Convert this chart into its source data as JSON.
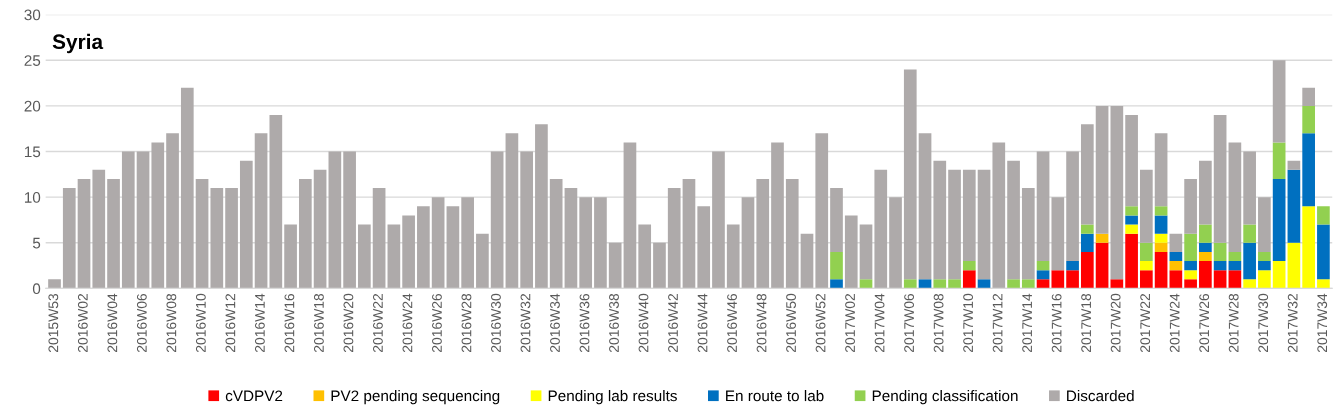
{
  "chart_data": {
    "type": "bar",
    "title": "Syria",
    "stacked": true,
    "categories": [
      "2015W53",
      null,
      "2016W02",
      null,
      "2016W04",
      null,
      "2016W06",
      null,
      "2016W08",
      null,
      "2016W10",
      null,
      "2016W12",
      null,
      "2016W14",
      null,
      "2016W16",
      null,
      "2016W18",
      null,
      "2016W20",
      null,
      "2016W22",
      null,
      "2016W24",
      null,
      "2016W26",
      null,
      "2016W28",
      null,
      "2016W30",
      null,
      "2016W32",
      null,
      "2016W34",
      null,
      "2016W36",
      null,
      "2016W38",
      null,
      "2016W40",
      null,
      "2016W42",
      null,
      "2016W44",
      null,
      "2016W46",
      null,
      "2016W48",
      null,
      "2016W50",
      null,
      "2016W52",
      null,
      "2017W02",
      null,
      "2017W04",
      null,
      "2017W06",
      null,
      "2017W08",
      null,
      "2017W10",
      null,
      "2017W12",
      null,
      "2017W14",
      null,
      "2017W16",
      null,
      "2017W18",
      null,
      "2017W20",
      null,
      "2017W22",
      null,
      "2017W24",
      null,
      "2017W26",
      null,
      "2017W28",
      null,
      "2017W30",
      null,
      "2017W32",
      null,
      "2017W34"
    ],
    "series": [
      {
        "name": "cVDPV2",
        "color": "#ff0000",
        "values": [
          0,
          0,
          0,
          0,
          0,
          0,
          0,
          0,
          0,
          0,
          0,
          0,
          0,
          0,
          0,
          0,
          0,
          0,
          0,
          0,
          0,
          0,
          0,
          0,
          0,
          0,
          0,
          0,
          0,
          0,
          0,
          0,
          0,
          0,
          0,
          0,
          0,
          0,
          0,
          0,
          0,
          0,
          0,
          0,
          0,
          0,
          0,
          0,
          0,
          0,
          0,
          0,
          0,
          0,
          0,
          0,
          0,
          0,
          0,
          0,
          0,
          0,
          2,
          0,
          0,
          0,
          0,
          1,
          2,
          2,
          4,
          5,
          1,
          6,
          2,
          4,
          2,
          1,
          3,
          2,
          2,
          0,
          0,
          0,
          0,
          0,
          0
        ]
      },
      {
        "name": "PV2 pending sequencing",
        "color": "#ffc000",
        "values": [
          0,
          0,
          0,
          0,
          0,
          0,
          0,
          0,
          0,
          0,
          0,
          0,
          0,
          0,
          0,
          0,
          0,
          0,
          0,
          0,
          0,
          0,
          0,
          0,
          0,
          0,
          0,
          0,
          0,
          0,
          0,
          0,
          0,
          0,
          0,
          0,
          0,
          0,
          0,
          0,
          0,
          0,
          0,
          0,
          0,
          0,
          0,
          0,
          0,
          0,
          0,
          0,
          0,
          0,
          0,
          0,
          0,
          0,
          0,
          0,
          0,
          0,
          0,
          0,
          0,
          0,
          0,
          0,
          0,
          0,
          0,
          1,
          0,
          0,
          0,
          1,
          1,
          0,
          1,
          0,
          0,
          0,
          0,
          0,
          0,
          0,
          0
        ]
      },
      {
        "name": "Pending lab results",
        "color": "#ffff00",
        "values": [
          0,
          0,
          0,
          0,
          0,
          0,
          0,
          0,
          0,
          0,
          0,
          0,
          0,
          0,
          0,
          0,
          0,
          0,
          0,
          0,
          0,
          0,
          0,
          0,
          0,
          0,
          0,
          0,
          0,
          0,
          0,
          0,
          0,
          0,
          0,
          0,
          0,
          0,
          0,
          0,
          0,
          0,
          0,
          0,
          0,
          0,
          0,
          0,
          0,
          0,
          0,
          0,
          0,
          0,
          0,
          0,
          0,
          0,
          0,
          0,
          0,
          0,
          0,
          0,
          0,
          0,
          0,
          0,
          0,
          0,
          0,
          0,
          0,
          1,
          1,
          1,
          0,
          1,
          0,
          0,
          0,
          1,
          2,
          3,
          5,
          9,
          1
        ]
      },
      {
        "name": "En route to lab",
        "color": "#0070c0",
        "values": [
          0,
          0,
          0,
          0,
          0,
          0,
          0,
          0,
          0,
          0,
          0,
          0,
          0,
          0,
          0,
          0,
          0,
          0,
          0,
          0,
          0,
          0,
          0,
          0,
          0,
          0,
          0,
          0,
          0,
          0,
          0,
          0,
          0,
          0,
          0,
          0,
          0,
          0,
          0,
          0,
          0,
          0,
          0,
          0,
          0,
          0,
          0,
          0,
          0,
          0,
          0,
          0,
          0,
          1,
          0,
          0,
          0,
          0,
          0,
          1,
          0,
          0,
          0,
          1,
          0,
          0,
          0,
          1,
          0,
          1,
          2,
          0,
          0,
          1,
          0,
          2,
          1,
          1,
          1,
          1,
          1,
          4,
          1,
          9,
          8,
          8,
          6
        ]
      },
      {
        "name": "Pending classification",
        "color": "#92d050",
        "values": [
          0,
          0,
          0,
          0,
          0,
          0,
          0,
          0,
          0,
          0,
          0,
          0,
          0,
          0,
          0,
          0,
          0,
          0,
          0,
          0,
          0,
          0,
          0,
          0,
          0,
          0,
          0,
          0,
          0,
          0,
          0,
          0,
          0,
          0,
          0,
          0,
          0,
          0,
          0,
          0,
          0,
          0,
          0,
          0,
          0,
          0,
          0,
          0,
          0,
          0,
          0,
          0,
          0,
          3,
          0,
          1,
          0,
          0,
          1,
          0,
          1,
          1,
          1,
          0,
          0,
          1,
          1,
          1,
          0,
          0,
          1,
          0,
          0,
          1,
          2,
          1,
          0,
          3,
          2,
          2,
          1,
          2,
          1,
          4,
          0,
          3,
          2
        ]
      },
      {
        "name": "Discarded",
        "color": "#aeaaaa",
        "values": [
          1,
          11,
          12,
          13,
          12,
          15,
          15,
          16,
          17,
          22,
          12,
          11,
          11,
          14,
          17,
          19,
          7,
          12,
          13,
          15,
          15,
          7,
          11,
          7,
          8,
          9,
          10,
          9,
          10,
          6,
          15,
          17,
          15,
          18,
          12,
          11,
          10,
          10,
          5,
          16,
          7,
          5,
          11,
          12,
          9,
          15,
          7,
          10,
          12,
          16,
          12,
          6,
          17,
          7,
          8,
          6,
          13,
          10,
          23,
          16,
          13,
          12,
          10,
          12,
          16,
          13,
          10,
          12,
          8,
          12,
          11,
          14,
          19,
          10,
          8,
          8,
          2,
          6,
          7,
          14,
          12,
          8,
          6,
          9,
          1,
          2,
          0
        ]
      }
    ],
    "ylim": [
      0,
      30
    ],
    "yticks": [
      0,
      5,
      10,
      15,
      20,
      25,
      30
    ],
    "grid": "y",
    "legend": "bottom"
  }
}
